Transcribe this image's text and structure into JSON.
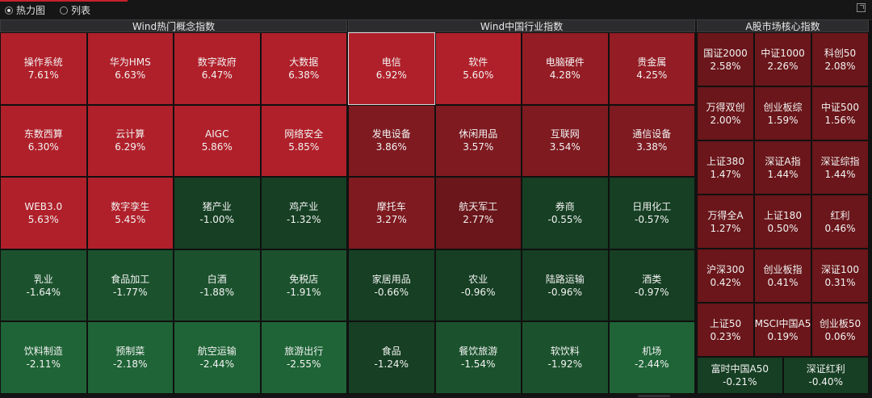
{
  "modes": [
    {
      "label": "热力图",
      "selected": true
    },
    {
      "label": "列表",
      "selected": false
    }
  ],
  "panels": [
    {
      "title": "Wind热门概念指数",
      "rows": [
        [
          {
            "name": "操作系统",
            "value": "7.61%"
          },
          {
            "name": "华为HMS",
            "value": "6.63%"
          },
          {
            "name": "数字政府",
            "value": "6.47%"
          },
          {
            "name": "大数据",
            "value": "6.38%"
          }
        ],
        [
          {
            "name": "东数西算",
            "value": "6.30%"
          },
          {
            "name": "云计算",
            "value": "6.29%"
          },
          {
            "name": "AIGC",
            "value": "5.86%"
          },
          {
            "name": "网络安全",
            "value": "5.85%"
          }
        ],
        [
          {
            "name": "WEB3.0",
            "value": "5.63%"
          },
          {
            "name": "数字孪生",
            "value": "5.45%"
          },
          {
            "name": "猪产业",
            "value": "-1.00%"
          },
          {
            "name": "鸡产业",
            "value": "-1.32%"
          }
        ],
        [
          {
            "name": "乳业",
            "value": "-1.64%"
          },
          {
            "name": "食品加工",
            "value": "-1.77%"
          },
          {
            "name": "白酒",
            "value": "-1.88%"
          },
          {
            "name": "免税店",
            "value": "-1.91%"
          }
        ],
        [
          {
            "name": "饮料制造",
            "value": "-2.11%"
          },
          {
            "name": "预制菜",
            "value": "-2.18%"
          },
          {
            "name": "航空运输",
            "value": "-2.44%"
          },
          {
            "name": "旅游出行",
            "value": "-2.55%"
          }
        ]
      ]
    },
    {
      "title": "Wind中国行业指数",
      "rows": [
        [
          {
            "name": "电信",
            "value": "6.92%",
            "selected": true
          },
          {
            "name": "软件",
            "value": "5.60%"
          },
          {
            "name": "电脑硬件",
            "value": "4.28%"
          },
          {
            "name": "贵金属",
            "value": "4.25%"
          }
        ],
        [
          {
            "name": "发电设备",
            "value": "3.86%"
          },
          {
            "name": "休闲用品",
            "value": "3.57%"
          },
          {
            "name": "互联网",
            "value": "3.54%"
          },
          {
            "name": "通信设备",
            "value": "3.38%"
          }
        ],
        [
          {
            "name": "摩托车",
            "value": "3.27%"
          },
          {
            "name": "航天军工",
            "value": "2.77%"
          },
          {
            "name": "券商",
            "value": "-0.55%"
          },
          {
            "name": "日用化工",
            "value": "-0.57%"
          }
        ],
        [
          {
            "name": "家居用品",
            "value": "-0.66%"
          },
          {
            "name": "农业",
            "value": "-0.96%"
          },
          {
            "name": "陆路运输",
            "value": "-0.96%"
          },
          {
            "name": "酒类",
            "value": "-0.97%"
          }
        ],
        [
          {
            "name": "食品",
            "value": "-1.24%"
          },
          {
            "name": "餐饮旅游",
            "value": "-1.54%"
          },
          {
            "name": "软饮料",
            "value": "-1.92%"
          },
          {
            "name": "机场",
            "value": "-2.44%"
          }
        ]
      ]
    },
    {
      "title": "A股市场核心指数",
      "rows": [
        [
          {
            "name": "国证2000",
            "value": "2.58%"
          },
          {
            "name": "中证1000",
            "value": "2.26%"
          },
          {
            "name": "科创50",
            "value": "2.08%"
          }
        ],
        [
          {
            "name": "万得双创",
            "value": "2.00%"
          },
          {
            "name": "创业板综",
            "value": "1.59%"
          },
          {
            "name": "中证500",
            "value": "1.56%"
          }
        ],
        [
          {
            "name": "上证380",
            "value": "1.47%"
          },
          {
            "name": "深证A指",
            "value": "1.44%"
          },
          {
            "name": "深证综指",
            "value": "1.44%"
          }
        ],
        [
          {
            "name": "万得全A",
            "value": "1.27%"
          },
          {
            "name": "上证180",
            "value": "0.50%"
          },
          {
            "name": "红利",
            "value": "0.46%"
          }
        ],
        [
          {
            "name": "沪深300",
            "value": "0.42%"
          },
          {
            "name": "创业板指",
            "value": "0.41%"
          },
          {
            "name": "深证100",
            "value": "0.31%"
          }
        ],
        [
          {
            "name": "上证50",
            "value": "0.23%"
          },
          {
            "name": "MSCI中国A5",
            "value": "0.19%"
          },
          {
            "name": "创业板50",
            "value": "0.06%"
          }
        ],
        [
          {
            "name": "富时中国A50",
            "value": "-0.21%"
          },
          {
            "name": "深证红利",
            "value": "-0.40%"
          }
        ]
      ]
    }
  ],
  "colors": {
    "up_strong": "#b0202a",
    "up_mid": "#941c24",
    "up_light": "#7e1a20",
    "up_faint": "#6a161a",
    "down_faint": "#163f23",
    "down_mid": "#1b522d",
    "down_strong": "#1f6436"
  }
}
